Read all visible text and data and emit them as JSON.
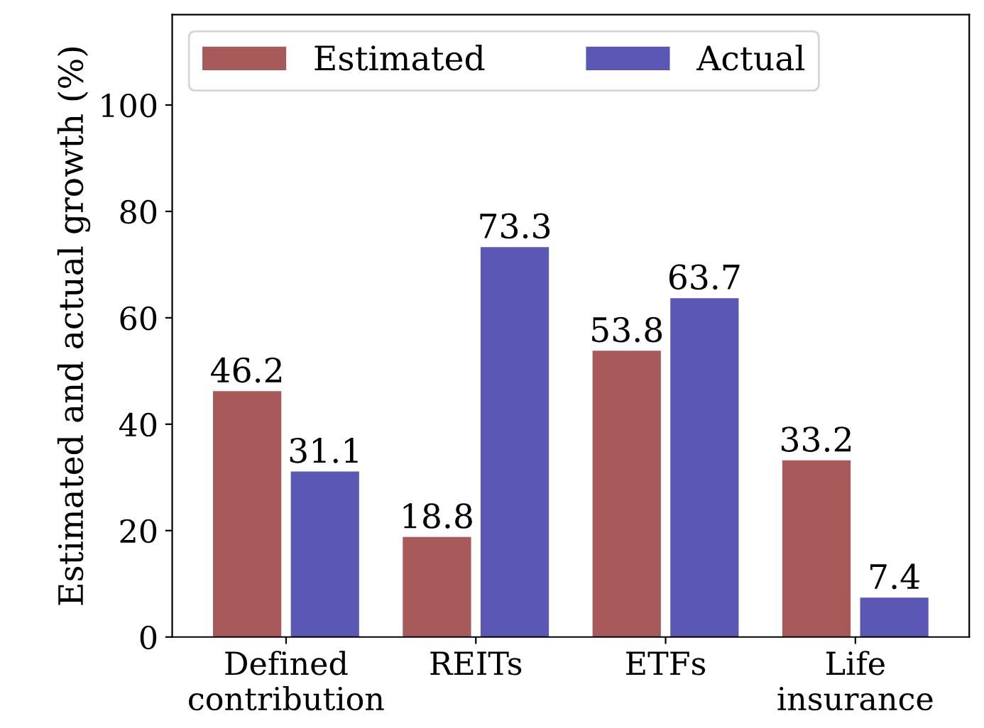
{
  "chart_data": {
    "type": "bar",
    "ylabel": "Estimated and actual growth (%)",
    "categories": [
      "Defined\ncontribution",
      "REITs",
      "ETFs",
      "Life\ninsurance"
    ],
    "series": [
      {
        "name": "Estimated",
        "color": "#a85a5a",
        "values": [
          46.2,
          18.8,
          53.8,
          33.2
        ]
      },
      {
        "name": "Actual",
        "color": "#5a57b5",
        "values": [
          31.1,
          73.3,
          63.7,
          7.4
        ]
      }
    ],
    "ylim": [
      0,
      117
    ],
    "yticks": [
      0,
      20,
      40,
      60,
      80,
      100
    ],
    "grid": false,
    "legend": "top left",
    "data_labels": true
  }
}
